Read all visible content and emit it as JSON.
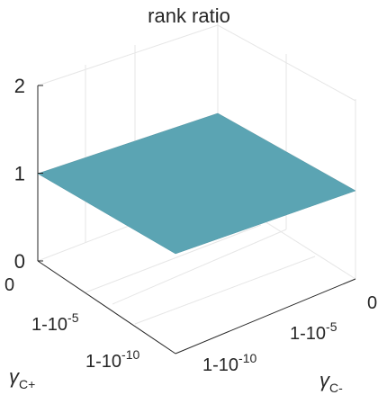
{
  "chart_data": {
    "type": "surface",
    "title": "rank ratio",
    "x": {
      "label_main": "γ",
      "label_sub": "C-",
      "tick_labels": [
        {
          "base": "1-10",
          "exp": "-10"
        },
        {
          "base": "1-10",
          "exp": "-5"
        },
        {
          "base": "0",
          "exp": ""
        }
      ]
    },
    "y": {
      "label_main": "γ",
      "label_sub": "C+",
      "tick_labels": [
        {
          "base": "0",
          "exp": ""
        },
        {
          "base": "1-10",
          "exp": "-5"
        },
        {
          "base": "1-10",
          "exp": "-10"
        }
      ]
    },
    "z": {
      "ticks": [
        0,
        1,
        2
      ],
      "tick_labels": [
        "0",
        "1",
        "2"
      ],
      "range": [
        0,
        2
      ]
    },
    "surface_value": 1,
    "surface_color": "#5BA4B3",
    "grid": true
  }
}
